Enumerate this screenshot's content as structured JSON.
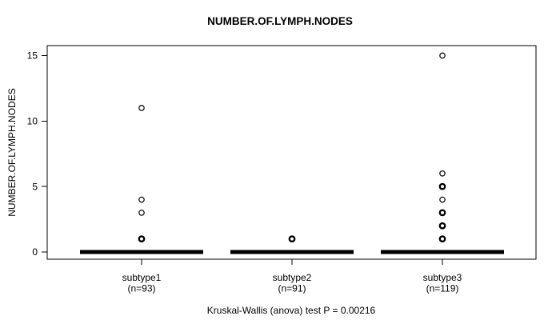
{
  "colors": {
    "foreground": "#000000",
    "background": "#ffffff"
  },
  "chart_data": {
    "type": "boxplot",
    "title": "NUMBER.OF.LYMPH.NODES",
    "ylabel": "NUMBER.OF.LYMPH.NODES",
    "xlabel": "",
    "ylim": [
      -0.6,
      15.6
    ],
    "yticks": [
      0,
      5,
      10,
      15
    ],
    "grid": false,
    "legend": null,
    "footnote": "Kruskal-Wallis (anova) test P = 0.00216",
    "groups": [
      {
        "label": "subtype1",
        "sublabel": "(n=93)",
        "n": 93,
        "box": {
          "median": 0,
          "q1": 0,
          "q3": 0,
          "whisker_low": 0,
          "whisker_high": 0
        },
        "outliers": [
          {
            "value": 11,
            "overplotted": false
          },
          {
            "value": 4,
            "overplotted": false
          },
          {
            "value": 3,
            "overplotted": false
          },
          {
            "value": 1,
            "overplotted": true
          }
        ]
      },
      {
        "label": "subtype2",
        "sublabel": "(n=91)",
        "n": 91,
        "box": {
          "median": 0,
          "q1": 0,
          "q3": 0,
          "whisker_low": 0,
          "whisker_high": 0
        },
        "outliers": [
          {
            "value": 1,
            "overplotted": true
          }
        ]
      },
      {
        "label": "subtype3",
        "sublabel": "(n=119)",
        "n": 119,
        "box": {
          "median": 0,
          "q1": 0,
          "q3": 0,
          "whisker_low": 0,
          "whisker_high": 0
        },
        "outliers": [
          {
            "value": 15,
            "overplotted": false
          },
          {
            "value": 6,
            "overplotted": false
          },
          {
            "value": 5,
            "overplotted": true
          },
          {
            "value": 4,
            "overplotted": false
          },
          {
            "value": 3,
            "overplotted": true
          },
          {
            "value": 2,
            "overplotted": true
          },
          {
            "value": 1,
            "overplotted": true
          }
        ]
      }
    ]
  }
}
